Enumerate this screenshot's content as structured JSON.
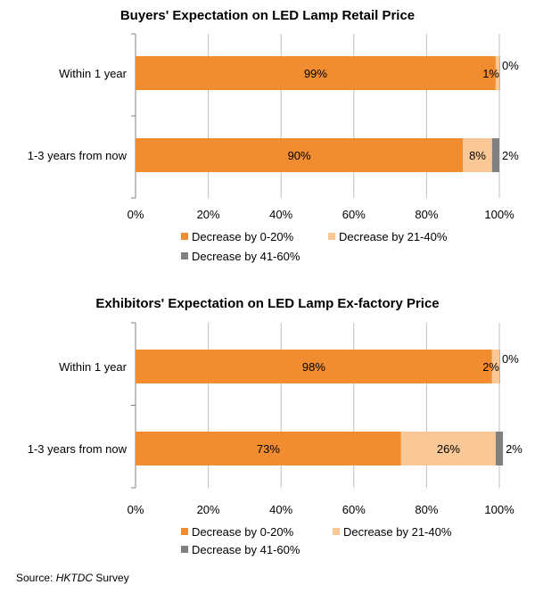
{
  "chart_data": [
    {
      "type": "bar",
      "orientation": "horizontal",
      "stacked": true,
      "title": "Buyers' Expectation on LED Lamp Retail Price",
      "categories": [
        "Within 1 year",
        "1-3 years from now"
      ],
      "series": [
        {
          "name": "Decrease by 0-20%",
          "color": "#F28C30",
          "values": [
            99,
            90
          ],
          "labels": [
            "99%",
            "90%"
          ]
        },
        {
          "name": "Decrease by 21-40%",
          "color": "#F9C896",
          "values": [
            1,
            8
          ],
          "labels": [
            "1%",
            "8%"
          ]
        },
        {
          "name": "Decrease by 41-60%",
          "color": "#808080",
          "values": [
            0,
            2
          ],
          "labels": [
            "0%",
            "2%"
          ]
        }
      ],
      "xlim": [
        0,
        100
      ],
      "xticks": [
        "0%",
        "20%",
        "40%",
        "60%",
        "80%",
        "100%"
      ],
      "grid": true,
      "legend": "bottom"
    },
    {
      "type": "bar",
      "orientation": "horizontal",
      "stacked": true,
      "title": "Exhibitors' Expectation on LED Lamp Ex-factory Price",
      "categories": [
        "Within 1 year",
        "1-3 years from now"
      ],
      "series": [
        {
          "name": "Decrease by 0-20%",
          "color": "#F28C30",
          "values": [
            98,
            73
          ],
          "labels": [
            "98%",
            "73%"
          ]
        },
        {
          "name": "Decrease by 21-40%",
          "color": "#F9C896",
          "values": [
            2,
            26
          ],
          "labels": [
            "2%",
            "26%"
          ]
        },
        {
          "name": "Decrease by 41-60%",
          "color": "#808080",
          "values": [
            0,
            2
          ],
          "labels": [
            "0%",
            "2%"
          ]
        }
      ],
      "xlim": [
        0,
        100
      ],
      "xticks": [
        "0%",
        "20%",
        "40%",
        "60%",
        "80%",
        "100%"
      ],
      "grid": true,
      "legend": "bottom"
    }
  ],
  "source": {
    "prefix": "Source: ",
    "name": "HKTDC",
    "suffix": " Survey"
  }
}
